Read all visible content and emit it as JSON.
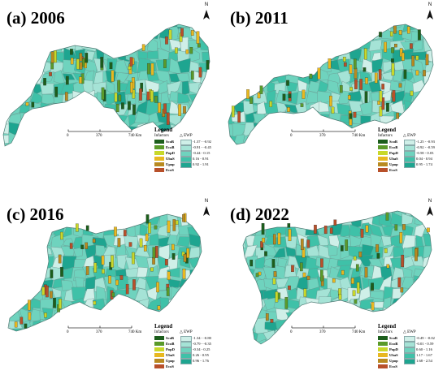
{
  "panels": [
    {
      "title": "(a) 2006",
      "legend": {
        "title": "Legend",
        "infactors": "Infactors",
        "ewp": "△ EWP",
        "factors": [
          "ScoB",
          "EcoB",
          "PopD",
          "UbaS",
          "Upop",
          "EcoS"
        ],
        "ranges": [
          "-1.37 - -0.92",
          "-0.91 - -0.45",
          "-0.44 - 0.15",
          "0.16 - 0.91",
          "0.92 - 1.91"
        ]
      },
      "scale": [
        "0",
        "370",
        "740 Km"
      ]
    },
    {
      "title": "(b) 2011",
      "legend": {
        "title": "Legend",
        "infactors": "Infactors",
        "ewp": "△ EWP",
        "factors": [
          "ScoB",
          "EcoB",
          "PopD",
          "UbaS",
          "Upop",
          "EcoS"
        ],
        "ranges": [
          "-1.25 - -0.93",
          "-0.92 - -0.59",
          "-0.58 - 0.03",
          "0.04 - 0.94",
          "0.95 - 1.74"
        ]
      },
      "scale": [
        "0",
        "370",
        "740 Km"
      ]
    },
    {
      "title": "(c) 2016",
      "legend": {
        "title": "Legend",
        "infactors": "Infactors",
        "ewp": "△ EWP",
        "factors": [
          "ScoB",
          "EcoB",
          "PopD",
          "UbaS",
          "Upop",
          "EcoS"
        ],
        "ranges": [
          "-1.34 - -0.80",
          "-0.79 - -0.35",
          "-0.34 - 0.25",
          "0.26 - 0.95",
          "0.96 - 1.76"
        ]
      },
      "scale": [
        "0",
        "370",
        "740 Km"
      ]
    },
    {
      "title": "(d) 2022",
      "legend": {
        "title": "Legend",
        "infactors": "Infactors",
        "ewp": "△ EWP",
        "factors": [
          "ScoB",
          "EcoB",
          "PopD",
          "UbaS",
          "Upop",
          "EcoS"
        ],
        "ranges": [
          "-0.49 - -0.02",
          "-0.01 - 0.59",
          "0.60 - 1.16",
          "1.17 - 1.67",
          "1.68 - 2.54"
        ]
      },
      "scale": [
        "0",
        "370",
        "740 Km"
      ]
    }
  ],
  "north_label": "N",
  "colors": {
    "factor_colors": [
      "#1c5e1c",
      "#5a9a2a",
      "#c8d82a",
      "#e8b820",
      "#b88a20",
      "#b8502a"
    ],
    "ewp_colors": [
      "#cfefe8",
      "#a5e3d6",
      "#6fd3be",
      "#3fc1a8",
      "#1ea590"
    ],
    "boundary": "#6b8f8a"
  }
}
